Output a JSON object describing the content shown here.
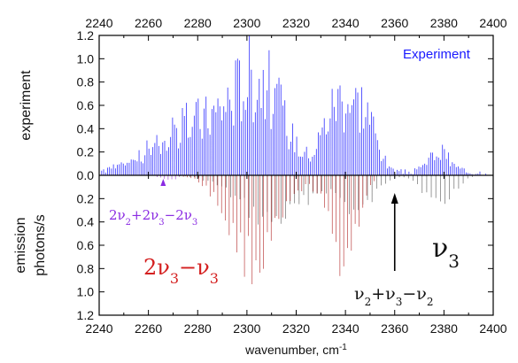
{
  "chart_data": {
    "type": "line",
    "title": "",
    "xlabel": "wavenumber, cm",
    "xlabel_superscript": "-1",
    "ylabel_upper": "experiment",
    "ylabel_lower_1": "emission",
    "ylabel_lower_2": "photons/s",
    "xlim": [
      2240,
      2400
    ],
    "x_ticks": [
      2240,
      2260,
      2280,
      2300,
      2320,
      2340,
      2360,
      2380,
      2400
    ],
    "ylim_upper": [
      0,
      1.2
    ],
    "ylim_lower": [
      0,
      1.2
    ],
    "y_ticks_upper": [
      0.0,
      0.2,
      0.4,
      0.6,
      0.8,
      1.0,
      1.2
    ],
    "y_ticks_lower": [
      0.2,
      0.4,
      0.6,
      0.8,
      1.0,
      1.2
    ],
    "upper_tick_label_text": [
      "0.0",
      "0.2",
      "0.4",
      "0.6",
      "0.8",
      "1.0",
      "1.2"
    ],
    "lower_tick_label_text": [
      "0.2",
      "0.4",
      "0.6",
      "0.8",
      "1.0",
      "1.2"
    ],
    "legend_experiment": "Experiment",
    "series": [
      {
        "name": "Experiment",
        "color": "#1a1aff",
        "direction": "up",
        "description_peaks": [
          {
            "center": 2280,
            "width": 22,
            "height": 0.62
          },
          {
            "center": 2305,
            "width": 14,
            "height": 1.05
          },
          {
            "center": 2338,
            "width": 9,
            "height": 0.95
          },
          {
            "center": 2349,
            "width": 6,
            "height": 0.55
          },
          {
            "center": 2378,
            "width": 6,
            "height": 0.25
          }
        ],
        "x_range": [
          2241,
          2398
        ],
        "spacing": 0.8
      },
      {
        "color": "#b22222",
        "direction": "down",
        "description_peaks": [
          {
            "center": 2303,
            "width": 14,
            "height": 0.95
          },
          {
            "center": 2339,
            "width": 8,
            "height": 0.9
          }
        ],
        "x_range": [
          2268,
          2352
        ],
        "spacing": 1.55
      },
      {
        "color": "#555555",
        "direction": "down",
        "description_peaks": [
          {
            "center": 2310,
            "width": 18,
            "height": 0.5
          },
          {
            "center": 2345,
            "width": 9,
            "height": 0.4
          },
          {
            "center": 2378,
            "width": 8,
            "height": 0.32
          }
        ],
        "x_range": [
          2262,
          2392
        ],
        "spacing": 1.85
      },
      {
        "color": "#9932cc",
        "direction": "down",
        "description_peaks": [
          {
            "center": 2268,
            "width": 4,
            "height": 0.06
          }
        ],
        "x_range": [
          2262,
          2274
        ],
        "spacing": 1.5
      }
    ],
    "annotations": {
      "v3_label": {
        "base": "ν",
        "sub": "3"
      },
      "red_label": {
        "t1": "2ν",
        "s1": "3",
        "t2": "−ν",
        "s2": "3"
      },
      "purple_label": {
        "t1": "2ν",
        "s1": "2",
        "t2": "+2ν",
        "s2": "3",
        "t3": "−2ν",
        "s3": "3"
      },
      "bottom_label": {
        "t1": "ν",
        "s1": "2",
        "t2": "+ν",
        "s2": "3",
        "t3": "−ν",
        "s3": "2"
      },
      "arrow_x": 2360,
      "purple_marker_x": 2266
    },
    "colors": {
      "experiment": "#1a1aff",
      "red_label": "#d42020",
      "purple_label": "#8a2be2"
    }
  }
}
